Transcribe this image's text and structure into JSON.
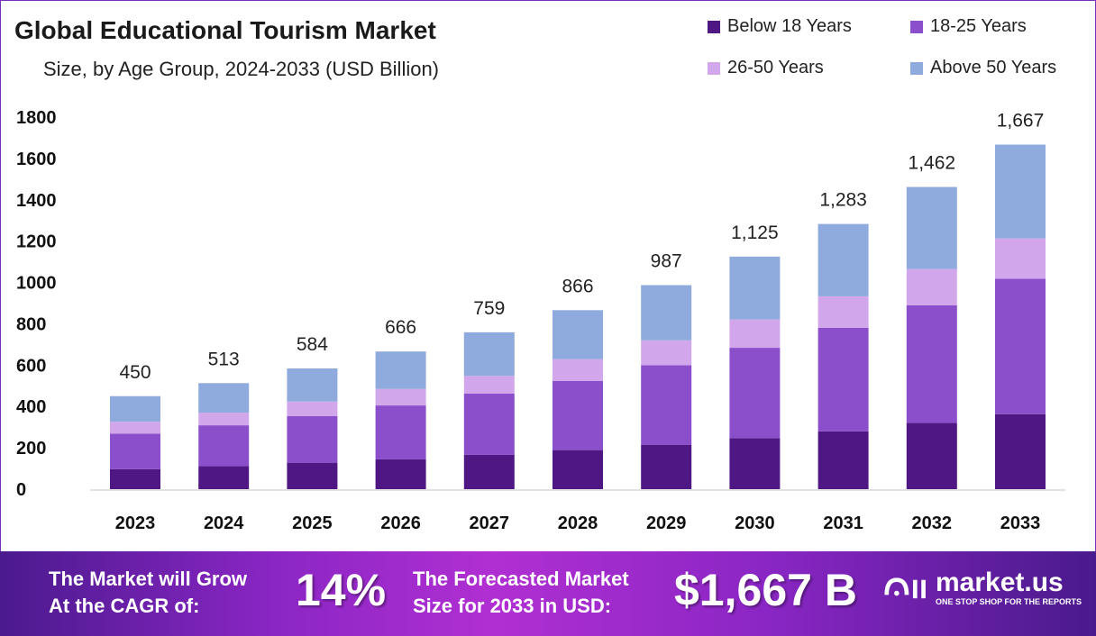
{
  "chart_data": {
    "type": "bar",
    "stacked": true,
    "title": "Global Educational Tourism Market",
    "subtitle": "Size, by Age Group, 2024-2033 (USD Billion)",
    "categories": [
      "2023",
      "2024",
      "2025",
      "2026",
      "2027",
      "2028",
      "2029",
      "2030",
      "2031",
      "2032",
      "2033"
    ],
    "series": [
      {
        "name": "Below 18 Years",
        "color": "#4f1784",
        "values": [
          97,
          112,
          128,
          145,
          166,
          189,
          215,
          247,
          280,
          321,
          363
        ]
      },
      {
        "name": "18-25 Years",
        "color": "#8b4fcb",
        "values": [
          172,
          197,
          226,
          260,
          296,
          335,
          385,
          437,
          501,
          569,
          655
        ]
      },
      {
        "name": "26-50 Years",
        "color": "#d2a6ea",
        "values": [
          57,
          61,
          70,
          80,
          86,
          105,
          120,
          137,
          152,
          175,
          195
        ]
      },
      {
        "name": "Above 50 Years",
        "color": "#8faadc",
        "values": [
          124,
          143,
          160,
          181,
          211,
          237,
          267,
          304,
          350,
          397,
          454
        ]
      }
    ],
    "totals": [
      "450",
      "513",
      "584",
      "666",
      "759",
      "866",
      "987",
      "1,125",
      "1,283",
      "1,462",
      "1,667"
    ],
    "ylim": [
      0,
      1800
    ],
    "yticks": [
      "0",
      "200",
      "400",
      "600",
      "800",
      "1000",
      "1200",
      "1400",
      "1600",
      "1800"
    ],
    "grid": false,
    "legend_position": "top-right"
  },
  "banner": {
    "cagr_label_1": "The Market will Grow",
    "cagr_label_2": "At the CAGR of:",
    "cagr_value": "14%",
    "forecast_label_1": "The Forecasted Market",
    "forecast_label_2": "Size for 2033 in USD:",
    "forecast_value": "$1,667 B",
    "logo_name": "market.us",
    "logo_tagline": "ONE STOP SHOP FOR THE REPORTS"
  }
}
